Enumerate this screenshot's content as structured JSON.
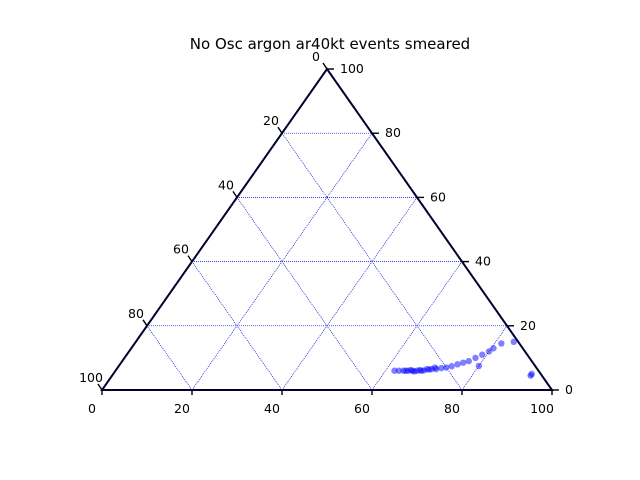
{
  "chart_data": {
    "type": "scatter",
    "subtype": "ternary",
    "title": "No Osc argon ar40kt events smeared",
    "scale": 100,
    "grid": true,
    "colors": {
      "frame": "#000033",
      "grid": "#0000cc",
      "points": "#0000ff"
    },
    "axes": {
      "bottom": {
        "ticks": [
          "0",
          "20",
          "40",
          "60",
          "80",
          "100"
        ]
      },
      "right": {
        "ticks": [
          "0",
          "20",
          "40",
          "60",
          "80",
          "100"
        ]
      },
      "left": {
        "ticks": [
          "0",
          "20",
          "40",
          "60",
          "80",
          "100"
        ]
      }
    },
    "series": [
      {
        "points": [
          [
            62,
            6
          ],
          [
            63,
            6
          ],
          [
            64,
            6
          ],
          [
            65,
            6
          ],
          [
            66,
            6
          ],
          [
            67,
            6
          ],
          [
            68,
            6
          ],
          [
            69,
            6.5
          ],
          [
            64.5,
            6
          ],
          [
            65.5,
            6.2
          ],
          [
            66.5,
            5.8
          ],
          [
            67.5,
            6.2
          ],
          [
            68.5,
            6.1
          ],
          [
            69.5,
            6.4
          ],
          [
            70,
            6.5
          ],
          [
            70.5,
            7
          ],
          [
            71,
            6.5
          ],
          [
            72,
            6.8
          ],
          [
            73,
            7
          ],
          [
            74,
            7.4
          ],
          [
            75,
            8
          ],
          [
            76,
            8.5
          ],
          [
            77,
            9
          ],
          [
            78,
            10
          ],
          [
            79,
            11
          ],
          [
            80,
            12
          ],
          [
            80.5,
            13
          ],
          [
            81.5,
            14.5
          ],
          [
            84,
            15
          ],
          [
            80,
            7.5
          ],
          [
            93,
            5
          ],
          [
            93,
            4.5
          ]
        ]
      }
    ]
  }
}
